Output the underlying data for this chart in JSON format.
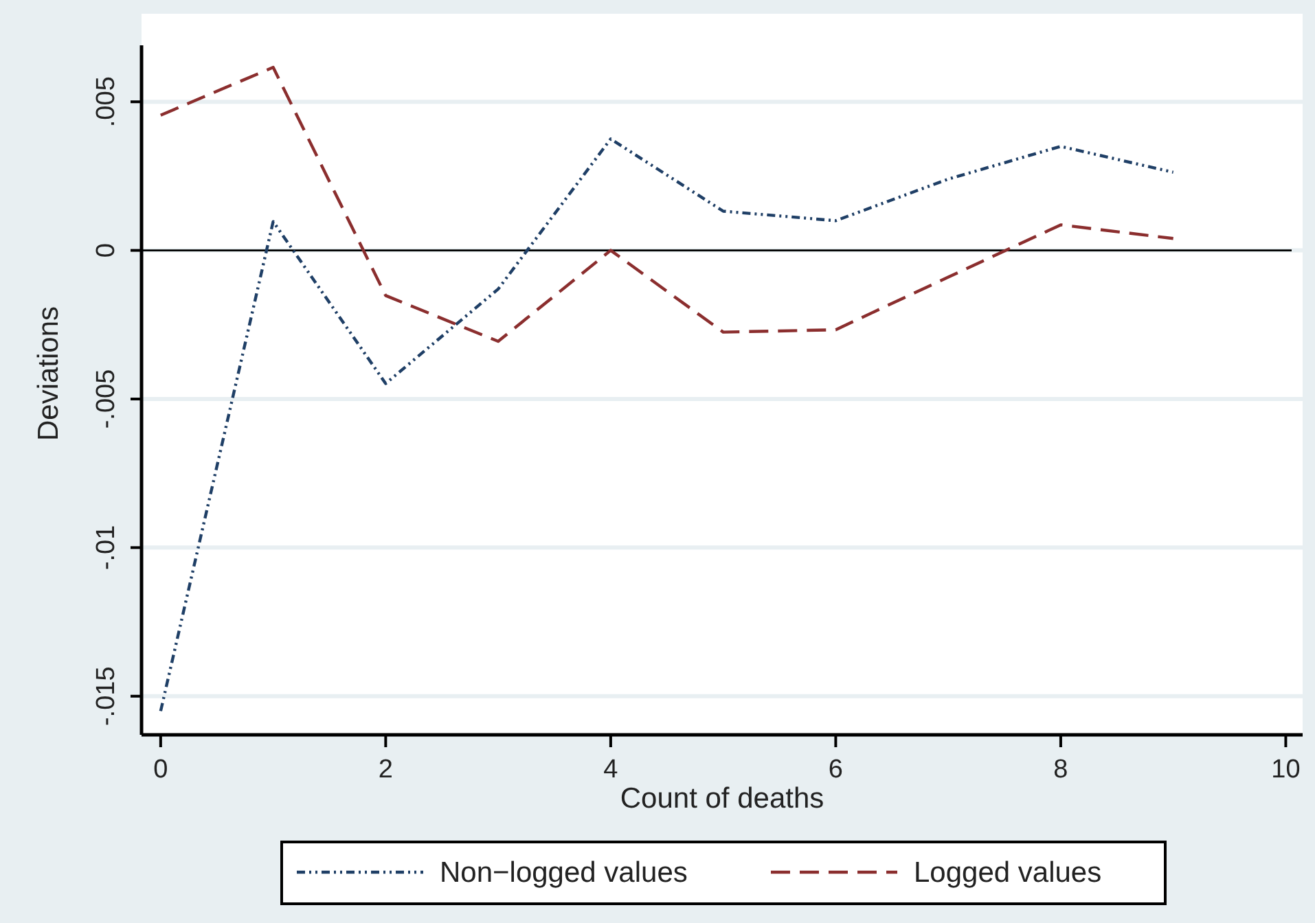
{
  "chart_data": {
    "type": "line",
    "xlabel": "Count of deaths",
    "ylabel": "Deviations",
    "x": [
      0,
      1,
      2,
      3,
      4,
      5,
      6,
      7,
      8,
      9
    ],
    "series": [
      {
        "name": "Non−logged values",
        "color": "#1f3f66",
        "line_style": "dotted",
        "values": [
          -0.0155,
          0.00097,
          -0.00448,
          -0.0013,
          0.00375,
          0.00132,
          0.001,
          0.0024,
          0.0035,
          0.00263
        ]
      },
      {
        "name": "Logged values",
        "color": "#8b2e2e",
        "line_style": "dashed",
        "values": [
          0.00455,
          0.00616,
          -0.00152,
          -0.00306,
          0,
          -0.00275,
          -0.00267,
          -0.0009,
          0.00086,
          0.0004
        ]
      }
    ],
    "xlim": [
      -0.17,
      10.15
    ],
    "xticks": [
      0,
      2,
      4,
      6,
      8,
      10
    ],
    "ylim": [
      -0.0163,
      0.0069
    ],
    "yticks": [
      {
        "value": 0.005,
        "label": ".005"
      },
      0,
      {
        "value": -0.005,
        "label": "-.005"
      },
      {
        "value": -0.01,
        "label": "-.01"
      },
      {
        "value": -0.015,
        "label": "-.015"
      }
    ],
    "ref_lines": [
      {
        "axis": "y",
        "value": 0,
        "color": "#000000"
      }
    ],
    "grid": "y",
    "legend": "bottom"
  }
}
